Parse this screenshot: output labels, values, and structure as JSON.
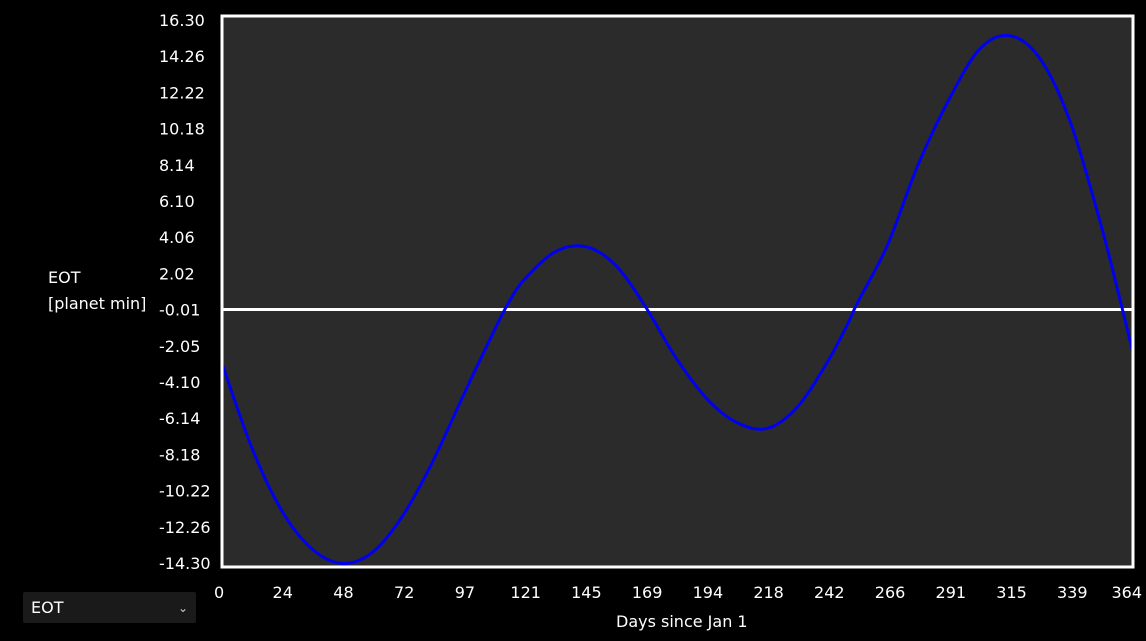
{
  "chart_data": {
    "type": "line",
    "title": "",
    "xlabel": "Days since Jan 1",
    "ylabel_line1": "EOT",
    "ylabel_line2": "[planet min]",
    "xlim": [
      0,
      364
    ],
    "ylim": [
      -14.3,
      16.3
    ],
    "x_ticks": [
      "0",
      "24",
      "48",
      "72",
      "97",
      "121",
      "145",
      "169",
      "194",
      "218",
      "242",
      "266",
      "291",
      "315",
      "339",
      "364"
    ],
    "y_ticks": [
      "16.30",
      "14.26",
      "12.22",
      "10.18",
      "8.14",
      "6.10",
      "4.06",
      "2.02",
      "-0.01",
      "-2.05",
      "-4.10",
      "-6.14",
      "-8.18",
      "-10.22",
      "-12.26",
      "-14.30"
    ],
    "zero_line": 0,
    "series": [
      {
        "color": "#0000ee",
        "x": [
          0,
          12,
          24,
          36,
          48,
          60,
          72,
          84,
          97,
          109,
          115,
          121,
          133,
          145,
          157,
          169,
          181,
          194,
          206,
          218,
          230,
          242,
          250,
          254,
          266,
          278,
          291,
          303,
          315,
          327,
          339,
          351,
          358,
          364
        ],
        "y": [
          -3.0,
          -7.7,
          -11.2,
          -13.3,
          -14.1,
          -13.5,
          -11.5,
          -8.5,
          -4.6,
          -1.1,
          0.5,
          1.7,
          3.2,
          3.5,
          2.5,
          0.2,
          -2.6,
          -5.0,
          -6.3,
          -6.6,
          -5.4,
          -2.9,
          -0.8,
          0.4,
          3.6,
          8.0,
          11.8,
          14.5,
          15.2,
          13.9,
          10.4,
          4.8,
          1.0,
          -2.4
        ]
      }
    ]
  },
  "selector": {
    "value": "EOT"
  },
  "colors": {
    "background": "#000000",
    "plot_background": "#2b2b2b",
    "frame": "#ffffff",
    "line": "#0000ee"
  }
}
